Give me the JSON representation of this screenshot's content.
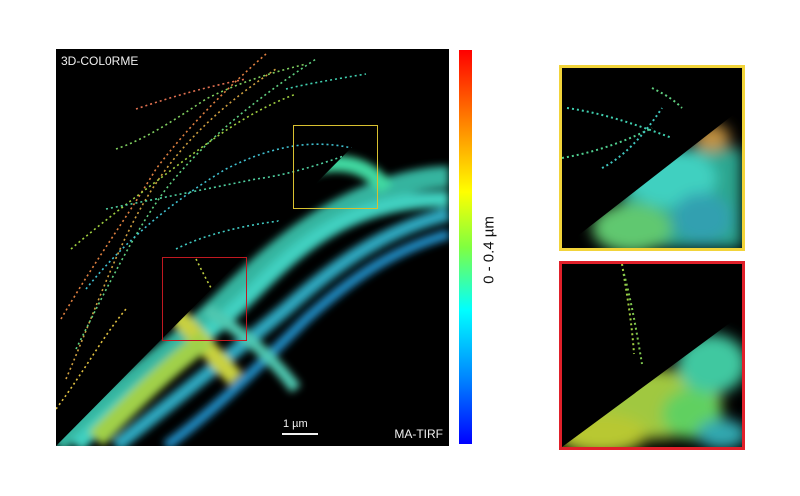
{
  "main": {
    "label_top": "3D-COL0RME",
    "label_bottom": "MA-TIRF",
    "scale_bar_label": "1 µm"
  },
  "colorbar": {
    "label": "0 - 0.4 µm",
    "colors": [
      "#ff0000",
      "#ffff00",
      "#00ffff",
      "#0000ff"
    ]
  },
  "insets": {
    "top_border_color": "#f2d43a",
    "bottom_border_color": "#e0202a"
  }
}
